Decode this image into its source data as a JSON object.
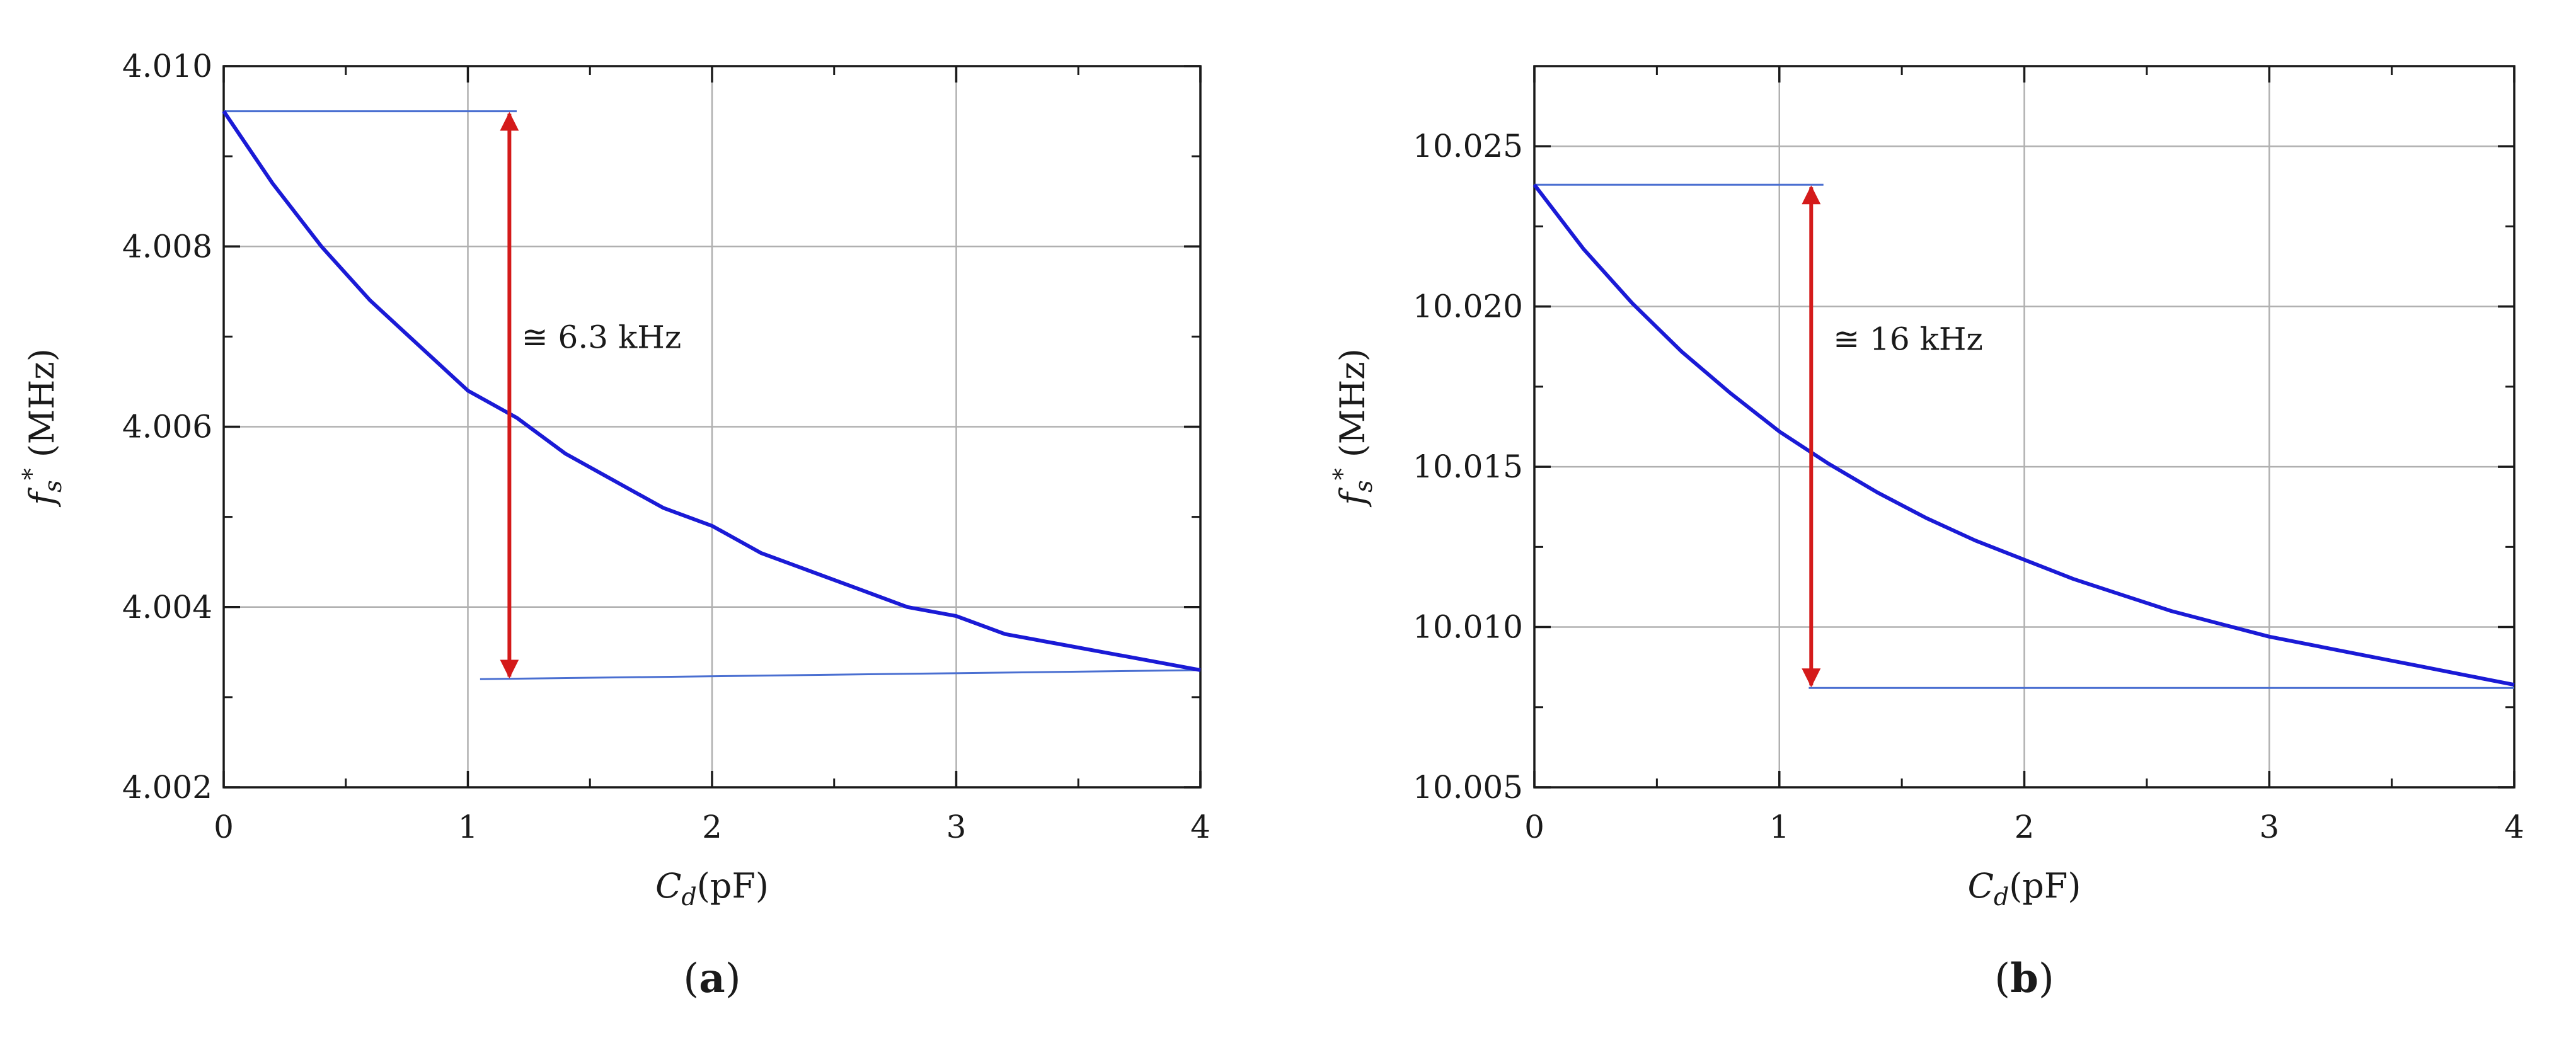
{
  "chart_data": [
    {
      "type": "line",
      "panel_label": "a",
      "xlabel": {
        "main": "C",
        "sub": "d",
        "unit": "(pF)"
      },
      "ylabel": {
        "main": "f",
        "sub": "s",
        "sup": "*",
        "unit": "(MHz)"
      },
      "xlim": [
        0,
        4
      ],
      "ylim": [
        4.002,
        4.01
      ],
      "xticks": [
        0,
        1,
        2,
        3,
        4
      ],
      "xtick_labels": [
        "0",
        "1",
        "2",
        "3",
        "4"
      ],
      "yticks": [
        4.002,
        4.004,
        4.006,
        4.008,
        4.01
      ],
      "ytick_labels": [
        "4.002",
        "4.004",
        "4.006",
        "4.008",
        "4.010"
      ],
      "grid": true,
      "series": [
        {
          "color": "#1a1ad6",
          "x": [
            0,
            0.2,
            0.4,
            0.6,
            0.8,
            1.0,
            1.2,
            1.4,
            1.6,
            1.8,
            2.0,
            2.2,
            2.4,
            2.6,
            2.8,
            3.0,
            3.2,
            3.4,
            3.6,
            3.8,
            4.0
          ],
          "y": [
            4.0095,
            4.0087,
            4.008,
            4.0074,
            4.0069,
            4.0064,
            4.0061,
            4.0057,
            4.0054,
            4.0051,
            4.0049,
            4.0046,
            4.0044,
            4.0042,
            4.004,
            4.0039,
            4.0037,
            4.0036,
            4.0035,
            4.0034,
            4.0033
          ]
        }
      ],
      "reference_lines": [
        {
          "x0": 0,
          "x1": 1.2,
          "y0": 4.0095,
          "y1": 4.0095
        },
        {
          "x0": 1.05,
          "x1": 4.0,
          "y0": 4.0032,
          "y1": 4.0033
        }
      ],
      "arrow": {
        "x": 1.17,
        "y_top": 4.0095,
        "y_bottom": 4.0032,
        "color": "#d41a1a"
      },
      "annotation": {
        "text": "≅ 6.3 kHz",
        "x": 1.22,
        "y": 4.007
      }
    },
    {
      "type": "line",
      "panel_label": "b",
      "xlabel": {
        "main": "C",
        "sub": "d",
        "unit": "(pF)"
      },
      "ylabel": {
        "main": "f",
        "sub": "s",
        "sup": "*",
        "unit": "(MHz)"
      },
      "xlim": [
        0,
        4
      ],
      "ylim": [
        10.005,
        10.0275
      ],
      "xticks": [
        0,
        1,
        2,
        3,
        4
      ],
      "xtick_labels": [
        "0",
        "1",
        "2",
        "3",
        "4"
      ],
      "yticks": [
        10.005,
        10.01,
        10.015,
        10.02,
        10.025
      ],
      "ytick_labels": [
        "10.005",
        "10.010",
        "10.015",
        "10.020",
        "10.025"
      ],
      "grid": true,
      "series": [
        {
          "color": "#1a1ad6",
          "x": [
            0,
            0.2,
            0.4,
            0.6,
            0.8,
            1.0,
            1.2,
            1.4,
            1.6,
            1.8,
            2.0,
            2.2,
            2.4,
            2.6,
            2.8,
            3.0,
            3.2,
            3.4,
            3.6,
            3.8,
            4.0
          ],
          "y": [
            10.0238,
            10.0218,
            10.0201,
            10.0186,
            10.0173,
            10.0161,
            10.0151,
            10.0142,
            10.0134,
            10.0127,
            10.0121,
            10.0115,
            10.011,
            10.0105,
            10.0101,
            10.0097,
            10.0094,
            10.0091,
            10.0088,
            10.0085,
            10.0082
          ]
        }
      ],
      "reference_lines": [
        {
          "x0": 0,
          "x1": 1.18,
          "y0": 10.0238,
          "y1": 10.0238
        },
        {
          "x0": 1.12,
          "x1": 4.0,
          "y0": 10.0081,
          "y1": 10.0081
        }
      ],
      "arrow": {
        "x": 1.13,
        "y_top": 10.0238,
        "y_bottom": 10.0081,
        "color": "#d41a1a"
      },
      "annotation": {
        "text": "≅ 16 kHz",
        "x": 1.22,
        "y": 10.019
      }
    }
  ],
  "colors": {
    "curve": "#1a1ad6",
    "guide": "#4a6fd1",
    "arrow": "#d41a1a",
    "grid": "#b0b0b0",
    "frame": "#1a1a1a"
  }
}
